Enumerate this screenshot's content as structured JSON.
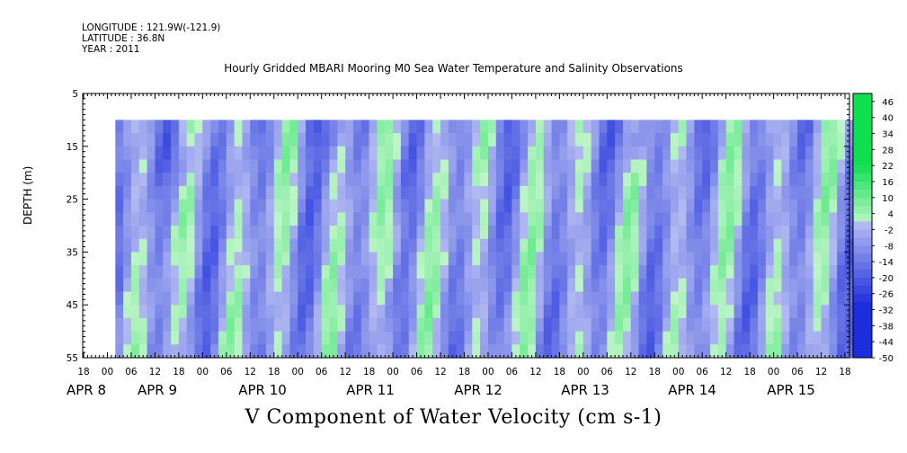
{
  "header": {
    "longitude": "LONGITUDE : 121.9W(-121.9)",
    "latitude": "LATITUDE : 36.8N",
    "year": "YEAR : 2011"
  },
  "chart_data": {
    "type": "heatmap",
    "title": "V Component of Water Velocity (cm s-1)",
    "subtitle": "Hourly Gridded MBARI Mooring M0 Sea Water Temperature and Salinity Observations",
    "ylabel": "DEPTH (m)",
    "xlabel": "",
    "yaxis": {
      "range": [
        5,
        55
      ],
      "reversed": true,
      "tick_labels": [
        "5",
        "15",
        "25",
        "35",
        "45",
        "55"
      ]
    },
    "xaxis": {
      "hour_tick_labels": [
        "18",
        "00",
        "06",
        "12",
        "18",
        "00",
        "06",
        "12",
        "18",
        "00",
        "06",
        "12",
        "18",
        "00",
        "06",
        "12",
        "18",
        "00",
        "06",
        "12",
        "18",
        "00",
        "06",
        "12",
        "18",
        "00",
        "06",
        "12",
        "18",
        "00",
        "06",
        "12",
        "18"
      ],
      "day_labels": [
        "APR  8",
        "APR  9",
        "APR 10",
        "APR 11",
        "APR 12",
        "APR 13",
        "APR 14",
        "APR 15"
      ]
    },
    "data_extent": {
      "depth_min": 10,
      "depth_max": 55,
      "start": "APR 8 02:00",
      "end": "APR 15 20:00"
    },
    "colorbar": {
      "labels": [
        "46",
        "40",
        "34",
        "28",
        "22",
        "16",
        "10",
        "4",
        "-2",
        "-8",
        "-14",
        "-20",
        "-26",
        "-32",
        "-38",
        "-44",
        "-50"
      ],
      "min": -50,
      "max": 49,
      "step": 3
    },
    "notes": "Field values alternate between weak southward flow (about -2 to -14 cm/s, blue) and weak northward flow (about 4 to 16 cm/s, green) in roughly half-day bands; strongest negatives near the surface around APR 8 18:00, APR 10 06:00 and APR 13 12:00."
  },
  "colors": {
    "negative_strong": "#1e3fd0",
    "negative_weak": "#aab4ee",
    "positive_weak": "#a8efb8",
    "positive_strong": "#10d050",
    "frame": "#000000"
  }
}
